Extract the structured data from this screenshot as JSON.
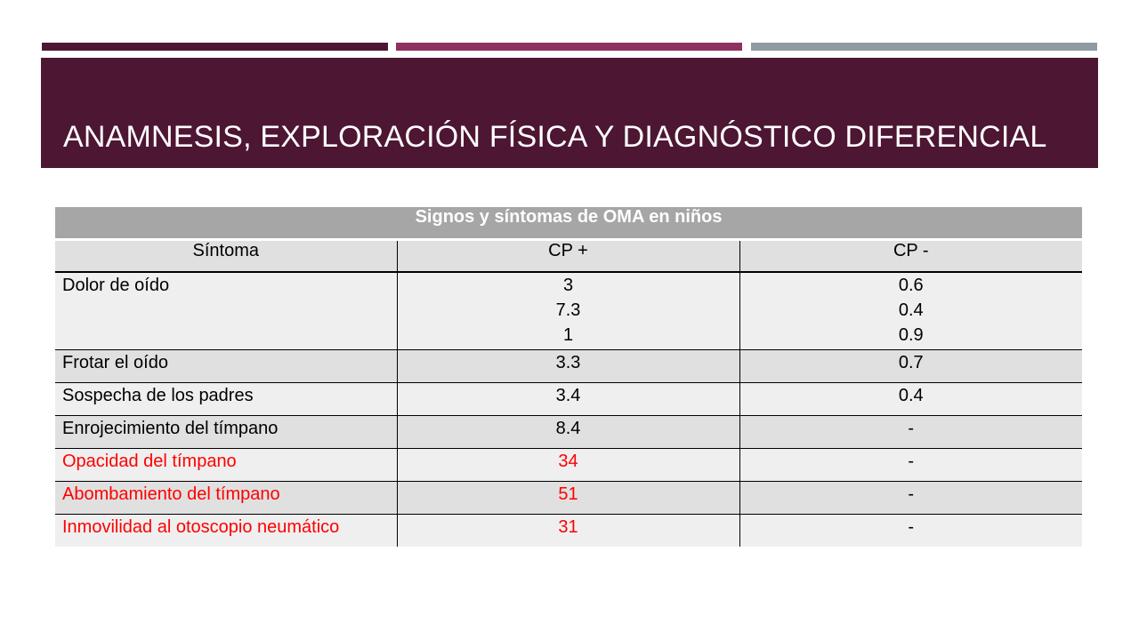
{
  "colors": {
    "accent_1": "#4d1633",
    "accent_2": "#8f3060",
    "accent_3": "#8f9aa3",
    "title_band": "#4d1633",
    "highlight_text": "#ff0000"
  },
  "slide": {
    "title": "ANAMNESIS, EXPLORACIÓN FÍSICA Y DIAGNÓSTICO DIFERENCIAL"
  },
  "table": {
    "caption": "Signos y síntomas de OMA en niños",
    "headers": [
      "Síntoma",
      "CP +",
      "CP -"
    ],
    "rows": [
      {
        "symptom": "Dolor de oído",
        "cp_pos": [
          "3",
          "7.3",
          "1"
        ],
        "cp_neg": [
          "0.6",
          "0.4",
          "0.9"
        ],
        "highlight": false
      },
      {
        "symptom": "Frotar el oído",
        "cp_pos": [
          "3.3"
        ],
        "cp_neg": [
          "0.7"
        ],
        "highlight": false
      },
      {
        "symptom": "Sospecha de los padres",
        "cp_pos": [
          "3.4"
        ],
        "cp_neg": [
          "0.4"
        ],
        "highlight": false
      },
      {
        "symptom": "Enrojecimiento del tímpano",
        "cp_pos": [
          "8.4"
        ],
        "cp_neg": [
          "-"
        ],
        "highlight": false
      },
      {
        "symptom": "Opacidad del tímpano",
        "cp_pos": [
          "34"
        ],
        "cp_neg": [
          "-"
        ],
        "highlight": true
      },
      {
        "symptom": "Abombamiento del tímpano",
        "cp_pos": [
          "51"
        ],
        "cp_neg": [
          "-"
        ],
        "highlight": true
      },
      {
        "symptom": "Inmovilidad al otoscopio neumático",
        "cp_pos": [
          "31"
        ],
        "cp_neg": [
          "-"
        ],
        "highlight": true
      }
    ]
  }
}
